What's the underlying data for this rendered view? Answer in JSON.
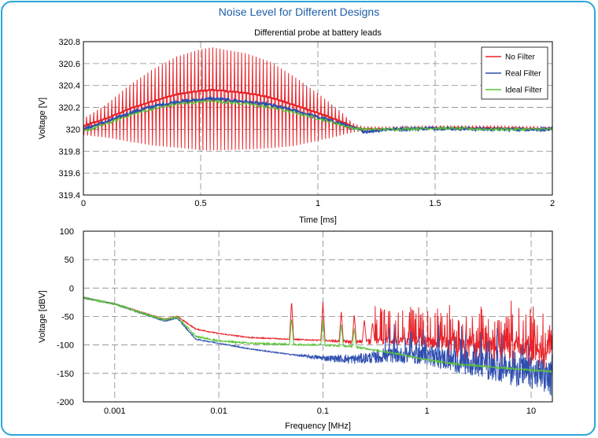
{
  "title": "Noise Level for Different Designs",
  "colors": {
    "frame": "#2aa6d8",
    "title": "#1f5fa8",
    "no_filter": "#e8232a",
    "real_filter": "#2f4fb0",
    "ideal_filter": "#5cc43a"
  },
  "chart_data": [
    {
      "type": "line",
      "title": "Differential probe at battery leads",
      "xlabel": "Time [ms]",
      "ylabel": "Voltage [V]",
      "xlim": [
        0,
        2
      ],
      "ylim": [
        319.4,
        320.8
      ],
      "xticks": [
        "0",
        "0.5",
        "1",
        "1.5",
        "2"
      ],
      "yticks": [
        "319.4",
        "319.6",
        "319.8",
        "320",
        "320.2",
        "320.4",
        "320.6",
        "320.8"
      ],
      "grid": true,
      "legend_position": "top-right",
      "legend": [
        "No Filter",
        "Real Filter",
        "Ideal Filter"
      ],
      "series": [
        {
          "name": "No Filter",
          "x": [
            0,
            0.1,
            0.2,
            0.3,
            0.4,
            0.5,
            0.55,
            0.6,
            0.7,
            0.8,
            0.9,
            1.0,
            1.1,
            1.15,
            1.2,
            1.3,
            1.5,
            1.75,
            2.0
          ],
          "y": [
            320.03,
            320.1,
            320.19,
            320.26,
            320.32,
            320.35,
            320.36,
            320.35,
            320.33,
            320.29,
            320.22,
            320.15,
            320.07,
            320.02,
            320.0,
            320.0,
            320.01,
            320.01,
            320.0
          ],
          "spike_amplitude": [
            0.05,
            0.12,
            0.22,
            0.3,
            0.36,
            0.4,
            0.41,
            0.4,
            0.38,
            0.34,
            0.27,
            0.18,
            0.08,
            0.02,
            0.0,
            0.0,
            0.0,
            0.0,
            0.0
          ]
        },
        {
          "name": "Real Filter",
          "x": [
            0,
            0.1,
            0.2,
            0.3,
            0.4,
            0.5,
            0.55,
            0.6,
            0.7,
            0.8,
            0.9,
            1.0,
            1.1,
            1.15,
            1.2,
            1.3,
            1.5,
            1.75,
            2.0
          ],
          "y": [
            320.0,
            320.07,
            320.15,
            320.21,
            320.25,
            320.27,
            320.28,
            320.27,
            320.25,
            320.22,
            320.17,
            320.11,
            320.05,
            320.01,
            319.98,
            320.0,
            320.01,
            320.0,
            320.0
          ]
        },
        {
          "name": "Ideal Filter",
          "x": [
            0,
            0.1,
            0.2,
            0.3,
            0.4,
            0.5,
            0.55,
            0.6,
            0.7,
            0.8,
            0.9,
            1.0,
            1.1,
            1.15,
            1.2,
            1.3,
            1.5,
            1.75,
            2.0
          ],
          "y": [
            319.98,
            320.05,
            320.13,
            320.19,
            320.23,
            320.25,
            320.26,
            320.25,
            320.23,
            320.2,
            320.15,
            320.1,
            320.04,
            320.01,
            320.0,
            320.0,
            320.01,
            320.0,
            320.0
          ]
        }
      ]
    },
    {
      "type": "line",
      "xlabel": "Frequency [MHz]",
      "ylabel": "Voltage [dBV]",
      "xscale": "log",
      "xlim": [
        0.0005,
        16
      ],
      "ylim": [
        -200,
        100
      ],
      "xticks": [
        "0.001",
        "0.01",
        "0.1",
        "1",
        "10"
      ],
      "yticks": [
        "-200",
        "-150",
        "-100",
        "-50",
        "0",
        "50",
        "100"
      ],
      "grid": true,
      "series": [
        {
          "name": "No Filter",
          "x": [
            0.0005,
            0.001,
            0.002,
            0.003,
            0.004,
            0.006,
            0.01,
            0.02,
            0.05,
            0.1,
            0.2,
            0.5,
            1,
            2,
            5,
            10,
            16
          ],
          "y": [
            -17,
            -28,
            -45,
            -55,
            -50,
            -72,
            -80,
            -87,
            -90,
            -92,
            -95,
            -92,
            -95,
            -96,
            -98,
            -100,
            -100
          ],
          "peaks": [
            {
              "x": 0.05,
              "y": -22
            },
            {
              "x": 0.1,
              "y": -23
            },
            {
              "x": 0.15,
              "y": -40
            },
            {
              "x": 0.2,
              "y": -45
            },
            {
              "x": 0.25,
              "y": -55
            },
            {
              "x": 0.3,
              "y": -60
            }
          ]
        },
        {
          "name": "Real Filter",
          "x": [
            0.0005,
            0.001,
            0.002,
            0.003,
            0.004,
            0.006,
            0.01,
            0.02,
            0.05,
            0.1,
            0.2,
            0.5,
            1,
            2,
            5,
            10,
            16
          ],
          "y": [
            -17,
            -28,
            -47,
            -58,
            -53,
            -90,
            -97,
            -107,
            -117,
            -123,
            -125,
            -118,
            -118,
            -130,
            -140,
            -150,
            -160
          ]
        },
        {
          "name": "Ideal Filter",
          "x": [
            0.0005,
            0.001,
            0.002,
            0.003,
            0.004,
            0.006,
            0.01,
            0.02,
            0.05,
            0.1,
            0.2,
            0.5,
            1,
            2,
            5,
            10,
            16
          ],
          "y": [
            -17,
            -28,
            -46,
            -56,
            -51,
            -85,
            -93,
            -97,
            -99,
            -100,
            -103,
            -115,
            -126,
            -134,
            -140,
            -144,
            -147
          ],
          "peaks": [
            {
              "x": 0.05,
              "y": -52
            },
            {
              "x": 0.1,
              "y": -55
            },
            {
              "x": 0.15,
              "y": -63
            },
            {
              "x": 0.2,
              "y": -70
            }
          ]
        }
      ]
    }
  ]
}
